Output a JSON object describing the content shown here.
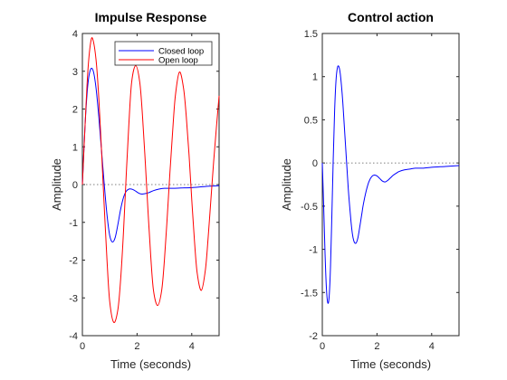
{
  "chart_data": [
    {
      "type": "line",
      "title": "Impulse Response",
      "xlabel": "Time (seconds)",
      "ylabel": "Amplitude",
      "xlim": [
        0,
        5
      ],
      "ylim": [
        -4,
        4
      ],
      "xticks": [
        "0",
        "2",
        "4"
      ],
      "yticks": [
        "-4",
        "-3",
        "-2",
        "-1",
        "0",
        "1",
        "2",
        "3",
        "4"
      ],
      "grid": false,
      "legend_position": "top-right",
      "zero_reference_line": true,
      "series": [
        {
          "name": "Closed loop",
          "color": "#0000ff",
          "x": [
            0,
            0.1,
            0.2,
            0.3,
            0.4,
            0.5,
            0.6,
            0.7,
            0.8,
            0.9,
            1.0,
            1.1,
            1.2,
            1.3,
            1.4,
            1.5,
            1.6,
            1.7,
            1.8,
            1.9,
            2.0,
            2.1,
            2.2,
            2.4,
            2.6,
            2.8,
            3.0,
            3.3,
            3.6,
            4.0,
            4.5,
            5.0
          ],
          "y": [
            0,
            1.6,
            2.65,
            3.05,
            3.0,
            2.55,
            1.8,
            0.9,
            0.0,
            -0.8,
            -1.35,
            -1.52,
            -1.4,
            -1.05,
            -0.65,
            -0.35,
            -0.18,
            -0.12,
            -0.12,
            -0.15,
            -0.2,
            -0.24,
            -0.25,
            -0.22,
            -0.16,
            -0.12,
            -0.1,
            -0.1,
            -0.09,
            -0.08,
            -0.05,
            -0.03
          ]
        },
        {
          "name": "Open loop",
          "color": "#ff0000",
          "x": [
            0,
            0.1,
            0.2,
            0.3,
            0.38,
            0.5,
            0.6,
            0.7,
            0.8,
            0.9,
            1.0,
            1.15,
            1.3,
            1.4,
            1.5,
            1.6,
            1.7,
            1.8,
            1.95,
            2.1,
            2.2,
            2.3,
            2.4,
            2.5,
            2.6,
            2.75,
            2.9,
            3.0,
            3.1,
            3.2,
            3.3,
            3.4,
            3.55,
            3.7,
            3.8,
            3.9,
            4.0,
            4.1,
            4.2,
            4.35,
            4.5,
            4.6,
            4.7,
            4.8,
            4.9,
            5.0
          ],
          "y": [
            0,
            1.6,
            3.0,
            3.75,
            3.85,
            3.3,
            2.3,
            0.9,
            -0.6,
            -2.0,
            -3.1,
            -3.65,
            -3.3,
            -2.5,
            -1.3,
            0.2,
            1.6,
            2.7,
            3.15,
            2.7,
            1.8,
            0.6,
            -0.7,
            -1.9,
            -2.8,
            -3.2,
            -2.8,
            -2.0,
            -0.9,
            0.3,
            1.4,
            2.35,
            2.98,
            2.55,
            1.8,
            0.8,
            -0.4,
            -1.5,
            -2.35,
            -2.8,
            -2.25,
            -1.4,
            -0.4,
            0.6,
            1.5,
            2.35
          ]
        }
      ]
    },
    {
      "type": "line",
      "title": "Control action",
      "xlabel": "Time (seconds)",
      "ylabel": "Amplitude",
      "xlim": [
        0,
        5
      ],
      "ylim": [
        -2,
        1.5
      ],
      "xticks": [
        "0",
        "2",
        "4"
      ],
      "yticks": [
        "-2",
        "-1.5",
        "-1",
        "-0.5",
        "0",
        "0.5",
        "1",
        "1.5"
      ],
      "grid": false,
      "zero_reference_line": true,
      "series": [
        {
          "color": "#0000ff",
          "x": [
            0,
            0.05,
            0.1,
            0.15,
            0.2,
            0.25,
            0.3,
            0.35,
            0.4,
            0.45,
            0.5,
            0.55,
            0.6,
            0.65,
            0.7,
            0.75,
            0.8,
            0.85,
            0.9,
            0.95,
            1.0,
            1.05,
            1.1,
            1.15,
            1.2,
            1.25,
            1.3,
            1.35,
            1.4,
            1.45,
            1.5,
            1.6,
            1.7,
            1.8,
            1.9,
            2.0,
            2.1,
            2.2,
            2.3,
            2.4,
            2.5,
            2.6,
            2.7,
            2.8,
            3.0,
            3.2,
            3.4,
            3.7,
            4.0,
            4.5,
            5.0
          ],
          "y": [
            0,
            -0.5,
            -1.05,
            -1.45,
            -1.62,
            -1.55,
            -1.2,
            -0.6,
            0.05,
            0.6,
            0.95,
            1.1,
            1.12,
            1.05,
            0.9,
            0.7,
            0.45,
            0.2,
            -0.05,
            -0.3,
            -0.5,
            -0.68,
            -0.82,
            -0.9,
            -0.93,
            -0.92,
            -0.87,
            -0.78,
            -0.68,
            -0.58,
            -0.48,
            -0.33,
            -0.22,
            -0.16,
            -0.14,
            -0.15,
            -0.18,
            -0.21,
            -0.22,
            -0.2,
            -0.17,
            -0.14,
            -0.12,
            -0.1,
            -0.08,
            -0.07,
            -0.06,
            -0.06,
            -0.05,
            -0.04,
            -0.03
          ]
        }
      ]
    }
  ]
}
